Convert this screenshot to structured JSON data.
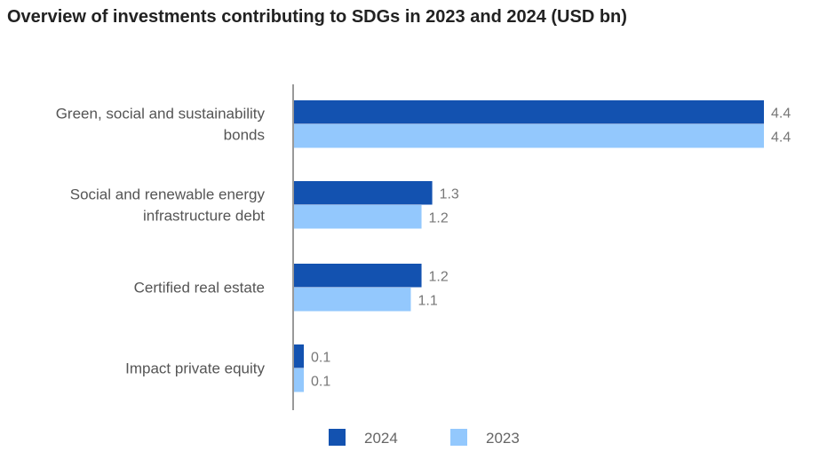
{
  "chart_data": {
    "type": "bar",
    "orientation": "horizontal",
    "title": "Overview of investments contributing to SDGs in 2023 and 2024 (USD bn)",
    "categories": [
      [
        "Green, social and sustainability",
        "bonds"
      ],
      [
        "Social and renewable energy",
        "infrastructure debt"
      ],
      [
        "Certified real estate"
      ],
      [
        "Impact private equity"
      ]
    ],
    "series": [
      {
        "name": "2024",
        "color": "#1352B0",
        "values": [
          4.4,
          1.3,
          1.2,
          0.1
        ],
        "labels": [
          "4.4",
          "1.3",
          "1.2",
          "0.1"
        ]
      },
      {
        "name": "2023",
        "color": "#93C8FD",
        "values": [
          4.4,
          1.2,
          1.1,
          0.1
        ],
        "labels": [
          "4.4",
          "1.2",
          "1.1",
          "0.1"
        ]
      }
    ],
    "xlim": [
      0,
      4.4
    ],
    "grid": false,
    "legend": "bottom-center"
  }
}
